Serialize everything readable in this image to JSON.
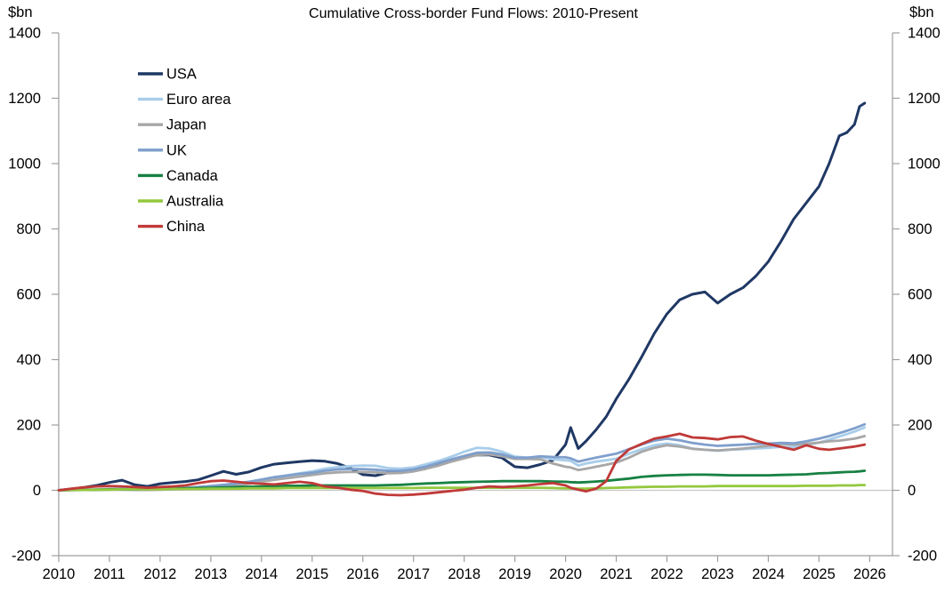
{
  "title": "Cumulative Cross-border Fund Flows: 2010-Present",
  "chart_data": {
    "type": "line",
    "title": "Cumulative Cross-border Fund Flows: 2010-Present",
    "ylabel_left": "$bn",
    "ylabel_right": "$bn",
    "xlabel": "",
    "ylim": [
      -200,
      1400
    ],
    "xlim": [
      2010,
      2026.45
    ],
    "yticks": [
      -200,
      0,
      200,
      400,
      600,
      800,
      1000,
      1200,
      1400
    ],
    "xticks": [
      2010,
      2011,
      2012,
      2013,
      2014,
      2015,
      2016,
      2017,
      2018,
      2019,
      2020,
      2021,
      2022,
      2023,
      2024,
      2025,
      2026
    ],
    "grid": false,
    "zero_line": true,
    "legend_position": "top-left-inside",
    "x": [
      2010.0,
      2010.25,
      2010.5,
      2010.75,
      2011.0,
      2011.25,
      2011.5,
      2011.75,
      2012.0,
      2012.25,
      2012.5,
      2012.75,
      2013.0,
      2013.25,
      2013.5,
      2013.75,
      2014.0,
      2014.25,
      2014.5,
      2014.75,
      2015.0,
      2015.25,
      2015.5,
      2015.75,
      2016.0,
      2016.25,
      2016.5,
      2016.75,
      2017.0,
      2017.25,
      2017.5,
      2017.75,
      2018.0,
      2018.25,
      2018.5,
      2018.75,
      2019.0,
      2019.25,
      2019.5,
      2019.75,
      2020.0,
      2020.1,
      2020.25,
      2020.4,
      2020.6,
      2020.8,
      2021.0,
      2021.25,
      2021.5,
      2021.75,
      2022.0,
      2022.25,
      2022.5,
      2022.75,
      2023.0,
      2023.25,
      2023.5,
      2023.75,
      2024.0,
      2024.25,
      2024.5,
      2024.75,
      2025.0,
      2025.2,
      2025.4,
      2025.55,
      2025.7,
      2025.8,
      2025.9
    ],
    "series": [
      {
        "name": "USA",
        "color": "#1f3864",
        "width": 3,
        "values": [
          0,
          4,
          9,
          15,
          24,
          31,
          17,
          12,
          20,
          24,
          27,
          32,
          45,
          58,
          49,
          56,
          70,
          80,
          84,
          88,
          91,
          89,
          82,
          68,
          48,
          45,
          54,
          58,
          64,
          70,
          79,
          92,
          101,
          108,
          108,
          99,
          72,
          69,
          79,
          92,
          140,
          192,
          128,
          150,
          185,
          225,
          280,
          340,
          408,
          480,
          540,
          583,
          600,
          607,
          573,
          600,
          620,
          655,
          700,
          762,
          830,
          880,
          930,
          1000,
          1085,
          1095,
          1120,
          1175,
          1185
        ]
      },
      {
        "name": "Euro area",
        "color": "#a8cdea",
        "width": 2.8,
        "values": [
          0,
          1,
          2,
          3,
          4,
          5,
          4,
          3,
          4,
          5,
          6,
          8,
          10,
          14,
          18,
          24,
          32,
          40,
          46,
          52,
          58,
          66,
          71,
          74,
          76,
          75,
          68,
          66,
          70,
          80,
          90,
          103,
          118,
          130,
          128,
          118,
          103,
          100,
          102,
          95,
          92,
          90,
          76,
          82,
          88,
          92,
          97,
          112,
          126,
          138,
          143,
          138,
          128,
          124,
          121,
          124,
          126,
          128,
          130,
          133,
          132,
          138,
          146,
          155,
          165,
          172,
          180,
          186,
          192
        ]
      },
      {
        "name": "Japan",
        "color": "#a7a7a7",
        "width": 2.8,
        "values": [
          0,
          0,
          1,
          1,
          2,
          2,
          1,
          1,
          2,
          3,
          4,
          6,
          9,
          12,
          15,
          20,
          26,
          32,
          37,
          42,
          47,
          52,
          55,
          56,
          56,
          55,
          52,
          53,
          58,
          66,
          76,
          88,
          98,
          108,
          110,
          104,
          96,
          96,
          95,
          82,
          72,
          70,
          62,
          66,
          72,
          78,
          85,
          100,
          118,
          130,
          138,
          134,
          127,
          124,
          122,
          125,
          128,
          132,
          136,
          142,
          140,
          142,
          146,
          150,
          152,
          155,
          158,
          162,
          166
        ]
      },
      {
        "name": "UK",
        "color": "#7f9fcc",
        "width": 2.8,
        "values": [
          0,
          1,
          2,
          2,
          3,
          4,
          3,
          3,
          5,
          6,
          8,
          10,
          13,
          17,
          21,
          26,
          33,
          40,
          45,
          50,
          54,
          60,
          64,
          65,
          65,
          63,
          60,
          60,
          64,
          73,
          84,
          95,
          105,
          115,
          116,
          110,
          100,
          100,
          104,
          102,
          101,
          98,
          88,
          93,
          100,
          106,
          112,
          126,
          140,
          152,
          158,
          153,
          145,
          140,
          136,
          138,
          140,
          142,
          143,
          145,
          144,
          150,
          158,
          166,
          175,
          182,
          190,
          196,
          202
        ]
      },
      {
        "name": "Canada",
        "color": "#178143",
        "width": 2.8,
        "values": [
          0,
          1,
          1,
          2,
          3,
          3,
          3,
          4,
          5,
          5,
          6,
          7,
          8,
          9,
          10,
          11,
          12,
          13,
          14,
          14,
          15,
          15,
          15,
          15,
          15,
          15,
          16,
          17,
          19,
          21,
          22,
          24,
          25,
          26,
          27,
          28,
          28,
          28,
          28,
          27,
          26,
          25,
          24,
          25,
          27,
          29,
          32,
          36,
          41,
          44,
          46,
          47,
          48,
          48,
          47,
          46,
          46,
          46,
          46,
          47,
          48,
          49,
          52,
          53,
          55,
          56,
          57,
          58,
          60
        ]
      },
      {
        "name": "Australia",
        "color": "#94c83e",
        "width": 2.8,
        "values": [
          0,
          1,
          1,
          2,
          2,
          3,
          3,
          3,
          3,
          4,
          4,
          4,
          5,
          5,
          5,
          6,
          6,
          6,
          7,
          7,
          7,
          7,
          7,
          7,
          7,
          7,
          7,
          7,
          7,
          8,
          8,
          8,
          8,
          8,
          8,
          8,
          8,
          8,
          8,
          7,
          6,
          6,
          5,
          5,
          6,
          7,
          8,
          9,
          10,
          11,
          11,
          12,
          12,
          12,
          13,
          13,
          13,
          13,
          13,
          13,
          13,
          14,
          14,
          14,
          15,
          15,
          15,
          16,
          16
        ]
      },
      {
        "name": "China",
        "color": "#c03a38",
        "width": 2.8,
        "values": [
          0,
          5,
          9,
          12,
          13,
          12,
          10,
          8,
          10,
          12,
          15,
          22,
          28,
          30,
          26,
          22,
          20,
          18,
          22,
          26,
          22,
          12,
          8,
          2,
          -2,
          -10,
          -14,
          -15,
          -13,
          -10,
          -6,
          -2,
          2,
          8,
          12,
          10,
          12,
          15,
          19,
          22,
          15,
          8,
          2,
          -3,
          5,
          28,
          90,
          125,
          142,
          158,
          165,
          173,
          162,
          160,
          156,
          163,
          165,
          152,
          142,
          133,
          124,
          138,
          127,
          124,
          128,
          131,
          134,
          137,
          140
        ]
      }
    ]
  },
  "colors": {
    "axis": "#9e9e9e",
    "zero_line": "#c8c8c8",
    "text": "#000000"
  }
}
